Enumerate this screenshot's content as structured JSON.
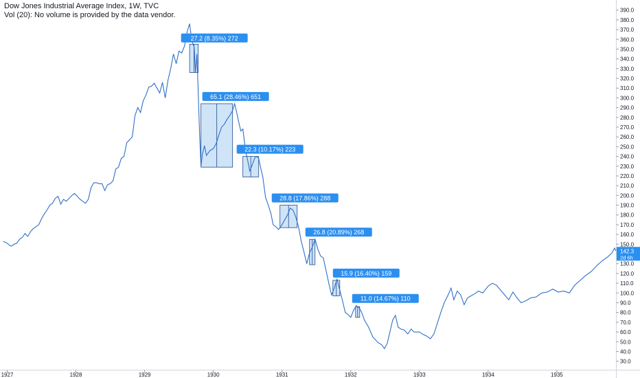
{
  "header": {
    "title": "Dow Jones Industrial Average Index, 1W, TVC",
    "volume_note": "Vol (20): No volume is provided by the data vendor."
  },
  "colors": {
    "line": "#2e6fc7",
    "label_bg": "#2b8ff0",
    "range_fill": "#bcd9f5",
    "range_border": "#1f4a8a",
    "price_tag": "#2b8ff0",
    "axis_text": "#131722",
    "axis_line": "#d1d4dc"
  },
  "chart_data": {
    "type": "line",
    "title": "Dow Jones Industrial Average Index, 1W, TVC",
    "xlabel": "",
    "ylabel": "",
    "ylim": [
      22,
      394
    ],
    "xlim": [
      1927.0,
      1935.85
    ],
    "grid": false,
    "y_ticks": [
      30,
      40,
      50,
      60,
      70,
      80,
      90,
      100,
      110,
      120,
      130,
      140,
      150,
      160,
      170,
      180,
      190,
      200,
      210,
      220,
      230,
      240,
      250,
      260,
      270,
      280,
      290,
      300,
      310,
      320,
      330,
      340,
      350,
      360,
      370,
      380,
      390
    ],
    "x_ticks": [
      {
        "label": "1927",
        "x": 1927.0
      },
      {
        "label": "1928",
        "x": 1928.0
      },
      {
        "label": "1929",
        "x": 1929.0
      },
      {
        "label": "1930",
        "x": 1930.0
      },
      {
        "label": "1931",
        "x": 1931.0
      },
      {
        "label": "1932",
        "x": 1932.0
      },
      {
        "label": "1933",
        "x": 1933.0
      },
      {
        "label": "1934",
        "x": 1934.0
      },
      {
        "label": "1935",
        "x": 1935.0
      }
    ],
    "series": [
      {
        "points": [
          [
            1926.94,
            153
          ],
          [
            1926.97,
            152
          ],
          [
            1927.0,
            151
          ],
          [
            1927.03,
            149
          ],
          [
            1927.06,
            148
          ],
          [
            1927.1,
            150
          ],
          [
            1927.14,
            151
          ],
          [
            1927.18,
            155
          ],
          [
            1927.22,
            157
          ],
          [
            1927.26,
            161
          ],
          [
            1927.3,
            158
          ],
          [
            1927.34,
            163
          ],
          [
            1927.38,
            166
          ],
          [
            1927.42,
            168
          ],
          [
            1927.46,
            170
          ],
          [
            1927.5,
            176
          ],
          [
            1927.54,
            181
          ],
          [
            1927.58,
            185
          ],
          [
            1927.62,
            190
          ],
          [
            1927.66,
            192
          ],
          [
            1927.7,
            197
          ],
          [
            1927.74,
            199
          ],
          [
            1927.78,
            191
          ],
          [
            1927.82,
            196
          ],
          [
            1927.86,
            194
          ],
          [
            1927.9,
            197
          ],
          [
            1927.94,
            200
          ],
          [
            1927.98,
            202
          ],
          [
            1928.02,
            199
          ],
          [
            1928.06,
            196
          ],
          [
            1928.1,
            194
          ],
          [
            1928.14,
            192
          ],
          [
            1928.18,
            196
          ],
          [
            1928.22,
            208
          ],
          [
            1928.26,
            213
          ],
          [
            1928.3,
            213
          ],
          [
            1928.34,
            212
          ],
          [
            1928.38,
            212
          ],
          [
            1928.42,
            205
          ],
          [
            1928.46,
            211
          ],
          [
            1928.5,
            212
          ],
          [
            1928.54,
            215
          ],
          [
            1928.58,
            227
          ],
          [
            1928.62,
            229
          ],
          [
            1928.66,
            238
          ],
          [
            1928.7,
            240
          ],
          [
            1928.74,
            254
          ],
          [
            1928.78,
            257
          ],
          [
            1928.82,
            260
          ],
          [
            1928.86,
            282
          ],
          [
            1928.9,
            290
          ],
          [
            1928.94,
            285
          ],
          [
            1928.98,
            297
          ],
          [
            1929.02,
            303
          ],
          [
            1929.06,
            311
          ],
          [
            1929.1,
            312
          ],
          [
            1929.14,
            315
          ],
          [
            1929.18,
            310
          ],
          [
            1929.22,
            305
          ],
          [
            1929.26,
            316
          ],
          [
            1929.3,
            300
          ],
          [
            1929.34,
            318
          ],
          [
            1929.38,
            330
          ],
          [
            1929.42,
            345
          ],
          [
            1929.46,
            335
          ],
          [
            1929.5,
            348
          ],
          [
            1929.54,
            346
          ],
          [
            1929.58,
            353
          ],
          [
            1929.62,
            368
          ],
          [
            1929.655,
            376
          ],
          [
            1929.68,
            362
          ],
          [
            1929.7,
            356
          ],
          [
            1929.72,
            352
          ],
          [
            1929.74,
            326
          ],
          [
            1929.76,
            345
          ],
          [
            1929.78,
            305
          ],
          [
            1929.8,
            262
          ],
          [
            1929.82,
            230
          ],
          [
            1929.84,
            242
          ],
          [
            1929.87,
            251
          ],
          [
            1929.9,
            241
          ],
          [
            1929.95,
            246
          ],
          [
            1930.0,
            248
          ],
          [
            1930.04,
            253
          ],
          [
            1930.08,
            262
          ],
          [
            1930.12,
            270
          ],
          [
            1930.16,
            273
          ],
          [
            1930.2,
            278
          ],
          [
            1930.24,
            282
          ],
          [
            1930.28,
            287
          ],
          [
            1930.31,
            294
          ],
          [
            1930.34,
            285
          ],
          [
            1930.37,
            275
          ],
          [
            1930.4,
            266
          ],
          [
            1930.43,
            268
          ],
          [
            1930.47,
            245
          ],
          [
            1930.5,
            236
          ],
          [
            1930.53,
            225
          ],
          [
            1930.57,
            232
          ],
          [
            1930.6,
            238
          ],
          [
            1930.63,
            240
          ],
          [
            1930.66,
            238
          ],
          [
            1930.69,
            228
          ],
          [
            1930.72,
            219
          ],
          [
            1930.76,
            198
          ],
          [
            1930.8,
            190
          ],
          [
            1930.84,
            181
          ],
          [
            1930.87,
            170
          ],
          [
            1930.91,
            168
          ],
          [
            1930.95,
            165
          ],
          [
            1931.0,
            170
          ],
          [
            1931.04,
            175
          ],
          [
            1931.08,
            180
          ],
          [
            1931.12,
            187
          ],
          [
            1931.16,
            185
          ],
          [
            1931.2,
            178
          ],
          [
            1931.24,
            168
          ],
          [
            1931.28,
            153
          ],
          [
            1931.32,
            142
          ],
          [
            1931.36,
            130
          ],
          [
            1931.4,
            141
          ],
          [
            1931.44,
            147
          ],
          [
            1931.48,
            155
          ],
          [
            1931.52,
            145
          ],
          [
            1931.56,
            138
          ],
          [
            1931.6,
            136
          ],
          [
            1931.64,
            123
          ],
          [
            1931.68,
            110
          ],
          [
            1931.72,
            98
          ],
          [
            1931.76,
            105
          ],
          [
            1931.8,
            114
          ],
          [
            1931.84,
            103
          ],
          [
            1931.88,
            92
          ],
          [
            1931.92,
            80
          ],
          [
            1931.96,
            78
          ],
          [
            1932.0,
            75
          ],
          [
            1932.04,
            82
          ],
          [
            1932.08,
            87
          ],
          [
            1932.12,
            85
          ],
          [
            1932.16,
            80
          ],
          [
            1932.2,
            72
          ],
          [
            1932.26,
            65
          ],
          [
            1932.32,
            55
          ],
          [
            1932.4,
            49
          ],
          [
            1932.45,
            47
          ],
          [
            1932.49,
            43
          ],
          [
            1932.53,
            48
          ],
          [
            1932.57,
            60
          ],
          [
            1932.61,
            72
          ],
          [
            1932.65,
            77
          ],
          [
            1932.69,
            65
          ],
          [
            1932.73,
            63
          ],
          [
            1932.78,
            62
          ],
          [
            1932.83,
            58
          ],
          [
            1932.88,
            63
          ],
          [
            1932.92,
            60
          ],
          [
            1932.96,
            60
          ],
          [
            1933.0,
            60
          ],
          [
            1933.04,
            58
          ],
          [
            1933.1,
            56
          ],
          [
            1933.16,
            53
          ],
          [
            1933.21,
            58
          ],
          [
            1933.26,
            69
          ],
          [
            1933.31,
            80
          ],
          [
            1933.36,
            90
          ],
          [
            1933.41,
            97
          ],
          [
            1933.46,
            105
          ],
          [
            1933.5,
            93
          ],
          [
            1933.55,
            102
          ],
          [
            1933.6,
            98
          ],
          [
            1933.65,
            88
          ],
          [
            1933.7,
            95
          ],
          [
            1933.75,
            97
          ],
          [
            1933.8,
            99
          ],
          [
            1933.86,
            102
          ],
          [
            1933.92,
            100
          ],
          [
            1934.0,
            107
          ],
          [
            1934.06,
            110
          ],
          [
            1934.12,
            108
          ],
          [
            1934.18,
            103
          ],
          [
            1934.24,
            98
          ],
          [
            1934.3,
            93
          ],
          [
            1934.36,
            101
          ],
          [
            1934.42,
            95
          ],
          [
            1934.48,
            90
          ],
          [
            1934.55,
            92
          ],
          [
            1934.62,
            95
          ],
          [
            1934.7,
            96
          ],
          [
            1934.78,
            100
          ],
          [
            1934.86,
            101
          ],
          [
            1934.94,
            104
          ],
          [
            1935.02,
            101
          ],
          [
            1935.1,
            102
          ],
          [
            1935.18,
            100
          ],
          [
            1935.26,
            108
          ],
          [
            1935.34,
            113
          ],
          [
            1935.42,
            118
          ],
          [
            1935.5,
            122
          ],
          [
            1935.58,
            128
          ],
          [
            1935.66,
            133
          ],
          [
            1935.74,
            137
          ],
          [
            1935.8,
            141
          ],
          [
            1935.84,
            146
          ],
          [
            1935.86,
            143
          ]
        ]
      }
    ],
    "annotations": [
      {
        "label": "27.2 (8.35%) 272",
        "x0": 1929.655,
        "x1": 1929.78,
        "y_top": 355,
        "y_bottom": 326,
        "tag_y": 360,
        "tag_x": 1929.59
      },
      {
        "label": "65.1 (28.46%) 651",
        "x0": 1929.82,
        "x1": 1930.28,
        "y_top": 294,
        "y_bottom": 229,
        "tag_y": 300,
        "tag_x": 1929.9
      },
      {
        "label": "22.3 (10.17%) 223",
        "x0": 1930.43,
        "x1": 1930.66,
        "y_top": 240,
        "y_bottom": 219,
        "tag_y": 246,
        "tag_x": 1930.4
      },
      {
        "label": "28.8 (17.86%) 288",
        "x0": 1930.97,
        "x1": 1931.22,
        "y_top": 190,
        "y_bottom": 167,
        "tag_y": 196,
        "tag_x": 1930.91
      },
      {
        "label": "26.8 (20.89%) 268",
        "x0": 1931.4,
        "x1": 1931.48,
        "y_top": 155,
        "y_bottom": 129,
        "tag_y": 161,
        "tag_x": 1931.4
      },
      {
        "label": "15.9 (16.40%) 159",
        "x0": 1931.74,
        "x1": 1931.84,
        "y_top": 113,
        "y_bottom": 97,
        "tag_y": 119,
        "tag_x": 1931.8
      },
      {
        "label": "11.0 (14.67%) 110",
        "x0": 1932.07,
        "x1": 1932.13,
        "y_top": 86,
        "y_bottom": 75,
        "tag_y": 93,
        "tag_x": 1932.08
      }
    ],
    "last_price": {
      "value": "142.3",
      "sub": "2d 6h",
      "y": 142.3
    }
  }
}
